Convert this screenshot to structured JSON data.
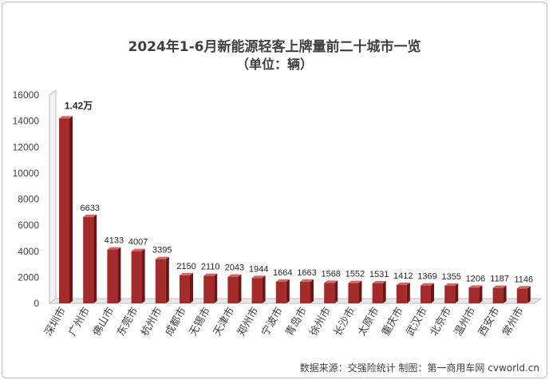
{
  "chart_data": {
    "type": "bar",
    "title": "2024年1-6月新能源轻客上牌量前二十城市一览",
    "subtitle": "（单位：辆）",
    "categories": [
      "深圳市",
      "广州市",
      "佛山市",
      "东莞市",
      "杭州市",
      "成都市",
      "无锡市",
      "天津市",
      "郑州市",
      "宁波市",
      "青岛市",
      "徐州市",
      "长沙市",
      "太原市",
      "重庆市",
      "武汉市",
      "北京市",
      "温州市",
      "西安市",
      "常州市"
    ],
    "values": [
      14200,
      6633,
      4133,
      4007,
      3395,
      2150,
      2110,
      2043,
      1944,
      1664,
      1663,
      1568,
      1552,
      1531,
      1412,
      1369,
      1355,
      1206,
      1187,
      1146
    ],
    "data_labels": [
      "1.42万",
      "6633",
      "4133",
      "4007",
      "3395",
      "2150",
      "2110",
      "2043",
      "1944",
      "1664",
      "1663",
      "1568",
      "1552",
      "1531",
      "1412",
      "1369",
      "1355",
      "1206",
      "1187",
      "1146"
    ],
    "yticks": [
      "0",
      "2000",
      "4000",
      "6000",
      "8000",
      "10000",
      "12000",
      "14000",
      "16000"
    ],
    "ylim": [
      0,
      16000
    ],
    "xlabel": "",
    "ylabel": "",
    "grid": false,
    "bar_color": "#a52a2a"
  },
  "source": "数据来源：交强险统计 制图：第一商用车网 cvworld.cn"
}
